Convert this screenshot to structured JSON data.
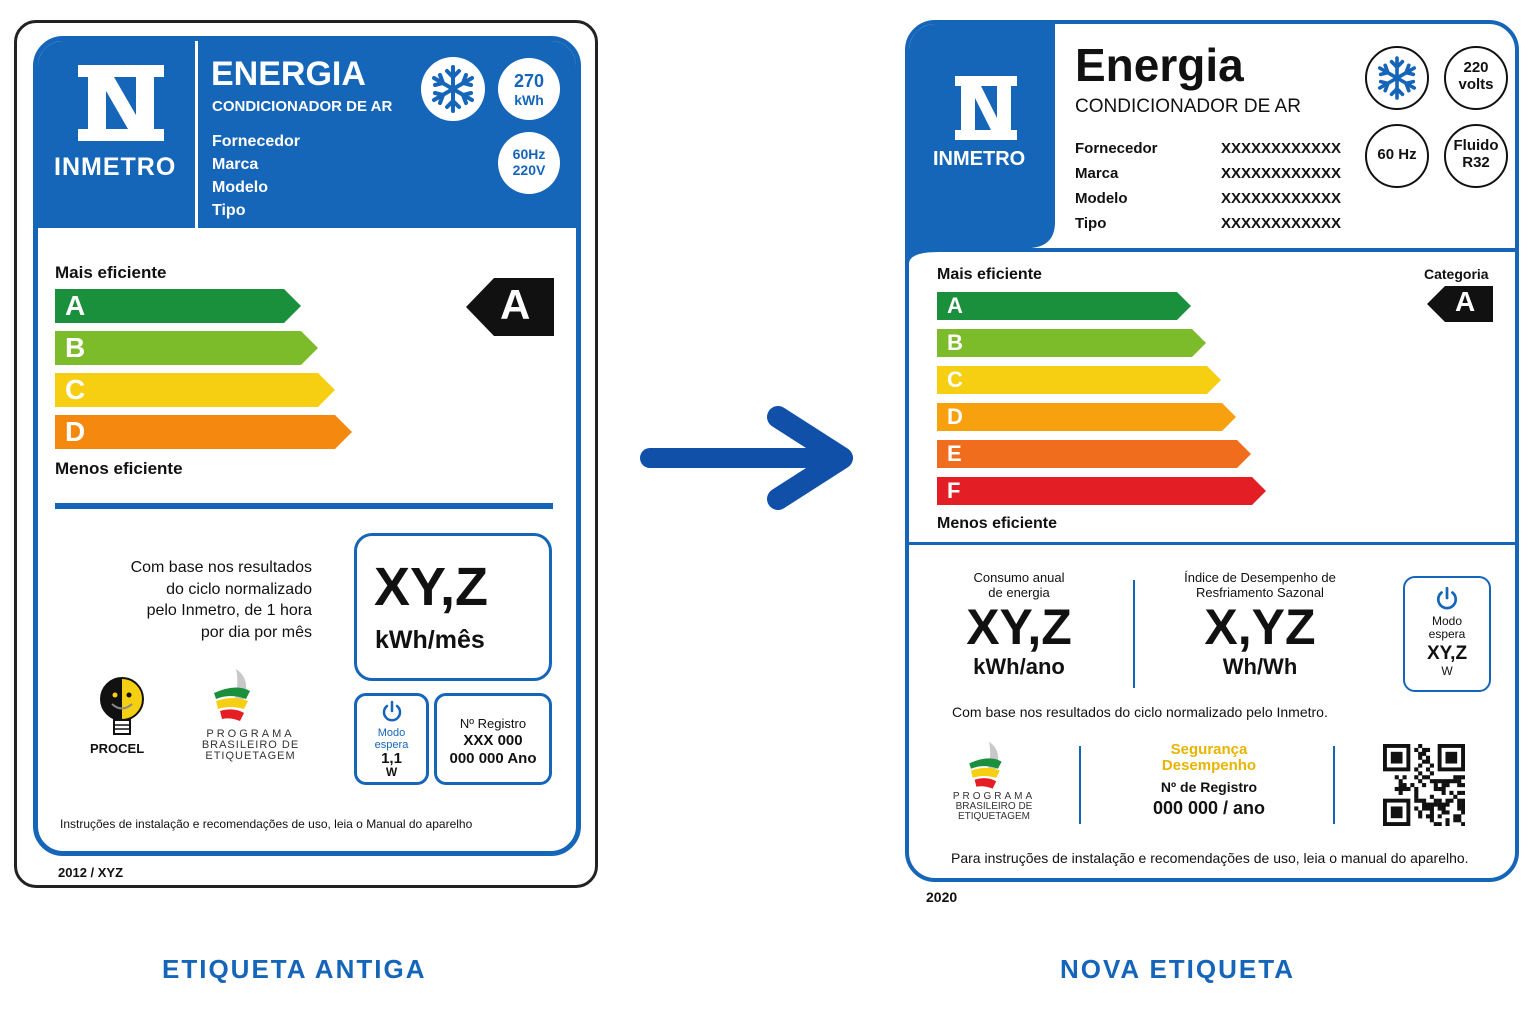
{
  "old_label": {
    "caption": "ETIQUETA  ANTIGA",
    "logo_text": "INMETRO",
    "title": "ENERGIA",
    "subtitle": "CONDICIONADOR DE AR",
    "fields": [
      "Fornecedor",
      "Marca",
      "Modelo",
      "Tipo"
    ],
    "consumption_badge": {
      "value": "270",
      "unit": "kWh"
    },
    "power_badge": {
      "line1": "60Hz",
      "line2": "220V"
    },
    "more_efficient": "Mais eficiente",
    "less_efficient": "Menos eficiente",
    "classes": [
      "A",
      "B",
      "C",
      "D"
    ],
    "class_colors": [
      "#1a8f3c",
      "#7cbb2a",
      "#f6cf12",
      "#f5890f"
    ],
    "rating": "A",
    "basis_text": [
      "Com base nos resultados",
      "do ciclo normalizado",
      "pelo Inmetro, de 1 hora",
      "por dia por mês"
    ],
    "consumption_value": "XY,Z",
    "consumption_unit": "kWh/mês",
    "standby": {
      "label1": "Modo",
      "label2": "espera",
      "value": "1,1",
      "unit": "W"
    },
    "registry": {
      "label": "Nº Registro",
      "line1": "XXX 000",
      "line2": "000 000 Ano"
    },
    "procel": "PROCEL",
    "pbe": [
      "PROGRAMA",
      "BRASILEIRO DE",
      "ETIQUETAGEM"
    ],
    "instructions": "Instruções de instalação e recomendações de uso, leia o Manual do aparelho",
    "footer_code": "2012 / XYZ"
  },
  "new_label": {
    "caption": "NOVA  ETIQUETA",
    "logo_text": "INMETRO",
    "title": "Energia",
    "subtitle": "CONDICIONADOR DE AR",
    "fields": [
      {
        "name": "Fornecedor",
        "value": "XXXXXXXXXXXX"
      },
      {
        "name": "Marca",
        "value": "XXXXXXXXXXXX"
      },
      {
        "name": "Modelo",
        "value": "XXXXXXXXXXXX"
      },
      {
        "name": "Tipo",
        "value": "XXXXXXXXXXXX"
      }
    ],
    "voltage_badge": {
      "line1": "220",
      "line2": "volts"
    },
    "freq_badge": "60 Hz",
    "fluid_badge": {
      "line1": "Fluido",
      "line2": "R32"
    },
    "more_efficient": "Mais eficiente",
    "less_efficient": "Menos eficiente",
    "category_label": "Categoria",
    "rating": "A",
    "classes": [
      "A",
      "B",
      "C",
      "D",
      "E",
      "F"
    ],
    "class_colors": [
      "#1a8f3c",
      "#7cbb2a",
      "#f6cf12",
      "#f7a10e",
      "#ef6d1c",
      "#e31e24"
    ],
    "annual": {
      "label1": "Consumo anual",
      "label2": "de energia",
      "value": "XY,Z",
      "unit": "kWh/ano"
    },
    "idrs": {
      "label1": "Índice de Desempenho de",
      "label2": "Resfriamento Sazonal",
      "value": "X,YZ",
      "unit": "Wh/Wh"
    },
    "standby": {
      "label1": "Modo",
      "label2": "espera",
      "value": "XY,Z",
      "unit": "W"
    },
    "basis_text": "Com base nos resultados do ciclo normalizado pelo Inmetro.",
    "pbe": [
      "PROGRAMA",
      "BRASILEIRO DE",
      "ETIQUETAGEM"
    ],
    "safety": {
      "line1": "Segurança",
      "line2": "Desempenho",
      "label": "Nº de Registro",
      "value": "000 000 / ano"
    },
    "instructions": "Para instruções de instalação e recomendações de uso, leia o manual do aparelho.",
    "footer_code": "2020"
  },
  "colors": {
    "brand_blue": "#1565b8",
    "safety_yellow": "#e8b400"
  }
}
